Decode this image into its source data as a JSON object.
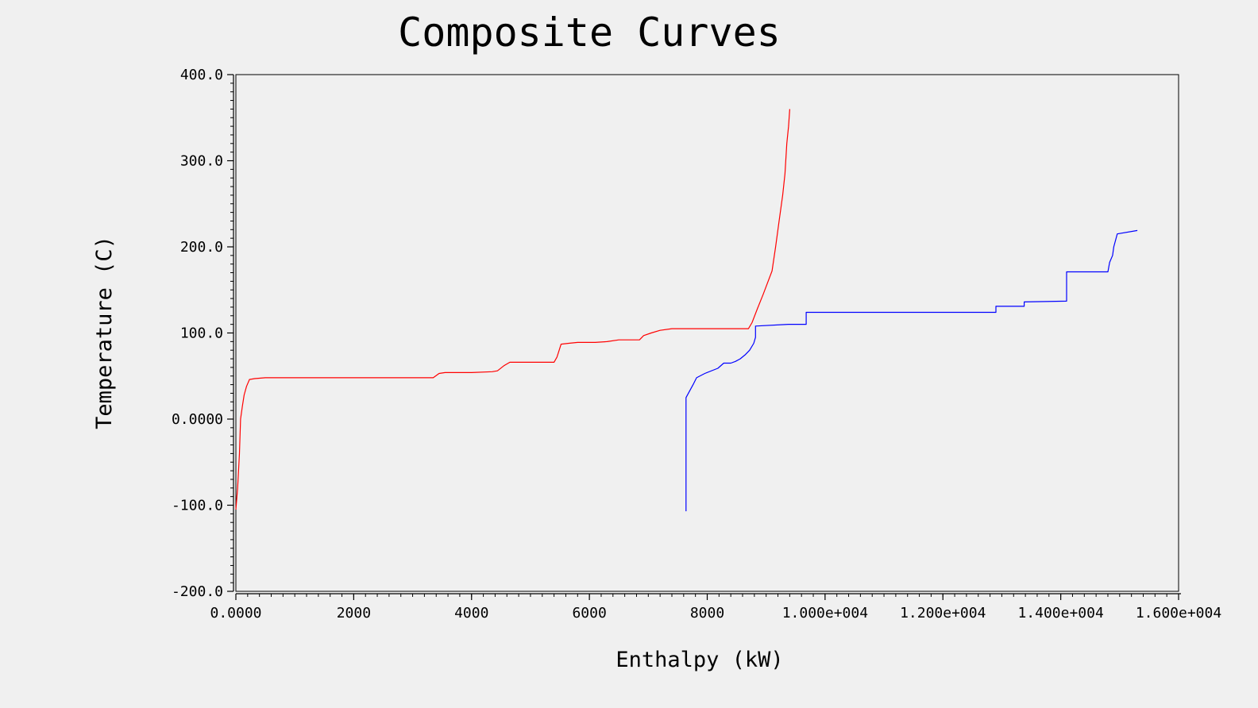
{
  "chart_data": {
    "type": "line",
    "title": "Composite Curves",
    "xlabel": "Enthalpy (kW)",
    "ylabel": "Temperature (C)",
    "xlim": [
      0,
      16000
    ],
    "ylim": [
      -200,
      400
    ],
    "x_ticks": [
      0,
      2000,
      4000,
      6000,
      8000,
      10000,
      12000,
      14000,
      16000
    ],
    "x_tick_labels": [
      "0.0000",
      "2000",
      "4000",
      "6000",
      "8000",
      "1.000e+004",
      "1.200e+004",
      "1.400e+004",
      "1.600e+004"
    ],
    "y_ticks": [
      -200,
      -100,
      0,
      100,
      200,
      300,
      400
    ],
    "y_tick_labels": [
      "-200.0",
      "-100.0",
      "0.0000",
      "100.0",
      "200.0",
      "300.0",
      "400.0"
    ],
    "grid": false,
    "legend": "none",
    "series": [
      {
        "color": "#ff0000",
        "x": [
          0,
          30,
          60,
          80,
          110,
          140,
          180,
          230,
          320,
          500,
          800,
          1500,
          2500,
          3350,
          3450,
          3550,
          4000,
          4350,
          4440,
          4550,
          4650,
          5300,
          5400,
          5450,
          5520,
          5650,
          5800,
          6100,
          6300,
          6500,
          6850,
          6920,
          7050,
          7200,
          7400,
          7800,
          8300,
          8700,
          8760,
          8850,
          8950,
          9100,
          9160,
          9220,
          9280,
          9320,
          9350,
          9380,
          9400
        ],
        "y": [
          -105,
          -80,
          -40,
          0,
          15,
          28,
          38,
          46,
          47,
          48,
          48,
          48,
          48,
          48,
          53,
          54,
          54,
          55,
          56,
          62,
          66,
          66,
          66,
          72,
          87,
          88,
          89,
          89,
          90,
          92,
          92,
          97,
          100,
          103,
          105,
          105,
          105,
          105,
          112,
          128,
          145,
          172,
          200,
          230,
          260,
          285,
          320,
          340,
          360
        ]
      },
      {
        "color": "#0000ff",
        "x": [
          7640,
          7640,
          7760,
          7820,
          7960,
          8180,
          8280,
          8400,
          8480,
          8560,
          8650,
          8720,
          8790,
          8820,
          8820,
          9380,
          9680,
          9680,
          12900,
          12900,
          13380,
          13380,
          14100,
          14100,
          14800,
          14830,
          14880,
          14900,
          14960,
          15300
        ],
        "y": [
          -107,
          25,
          40,
          48,
          53,
          59,
          65,
          65,
          67,
          70,
          75,
          80,
          88,
          95,
          108,
          110,
          110,
          124,
          124,
          131,
          131,
          136,
          137,
          171,
          171,
          182,
          190,
          200,
          215,
          219
        ]
      }
    ]
  }
}
